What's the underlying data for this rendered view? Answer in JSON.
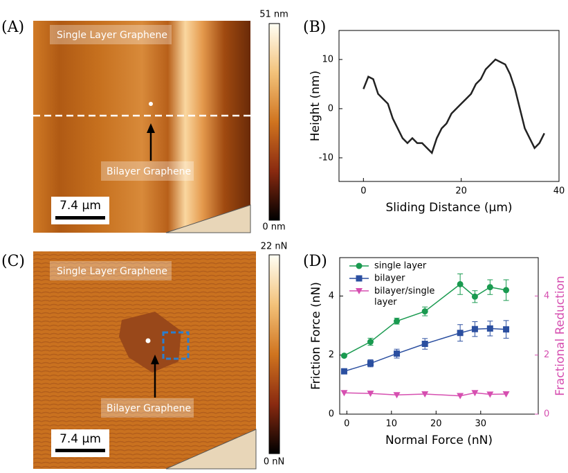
{
  "panels": {
    "a": {
      "label": "(A)",
      "top_annotation": "Single Layer Graphene",
      "bottom_annotation": "Bilayer Graphene",
      "scale_bar": "7.4 µm",
      "colorbar_max": "51 nm",
      "colorbar_min": "0 nm"
    },
    "b": {
      "label": "(B)"
    },
    "c": {
      "label": "(C)",
      "top_annotation": "Single Layer Graphene",
      "bottom_annotation": "Bilayer Graphene",
      "scale_bar": "7.4 µm",
      "colorbar_max": "22 nN",
      "colorbar_min": "0 nN"
    },
    "d": {
      "label": "(D)"
    }
  },
  "chart_data": [
    {
      "type": "line",
      "xlabel": "Sliding Distance (µm)",
      "ylabel": "Height (nm)",
      "x": [
        0,
        1,
        2,
        3,
        4,
        5,
        6,
        7,
        8,
        9,
        10,
        11,
        12,
        13,
        14,
        15,
        16,
        17,
        18,
        19,
        20,
        21,
        22,
        23,
        24,
        25,
        26,
        27,
        28,
        29,
        30,
        31,
        32,
        33,
        34,
        35,
        36,
        37
      ],
      "series": [
        {
          "color": "#222222",
          "values": [
            4,
            6.5,
            6,
            3,
            2,
            1,
            -2,
            -4,
            -6,
            -7,
            -6,
            -7,
            -7,
            -8,
            -9,
            -6,
            -4,
            -3,
            -1,
            0,
            1,
            2,
            3,
            5,
            6,
            8,
            9,
            10,
            9.5,
            9,
            7,
            4,
            0,
            -4,
            -6,
            -8,
            -7,
            -5
          ]
        }
      ],
      "xlim": [
        -5,
        40
      ],
      "ylim": [
        -14.8,
        15.9
      ],
      "xticks": [
        0,
        20,
        40
      ],
      "yticks": [
        -10,
        0,
        10
      ]
    },
    {
      "type": "line",
      "xlabel": "Normal Force (nN)",
      "ylabel": "Friction Force (nN)",
      "y2label": "Fractional Reduction",
      "x": [
        -0.6,
        5.3,
        11.2,
        17.5,
        25.4,
        28.7,
        32.1,
        35.7
      ],
      "series": [
        {
          "name": "single layer",
          "color": "#1a9a50",
          "marker": "circle",
          "values": [
            1.98,
            2.45,
            3.15,
            3.48,
            4.4,
            3.98,
            4.3,
            4.2
          ],
          "errors": [
            0.03,
            0.12,
            0.1,
            0.15,
            0.35,
            0.2,
            0.25,
            0.35
          ]
        },
        {
          "name": "bilayer",
          "color": "#2b4fa0",
          "marker": "square",
          "values": [
            1.45,
            1.72,
            2.05,
            2.38,
            2.75,
            2.88,
            2.9,
            2.87
          ],
          "errors": [
            0.08,
            0.12,
            0.15,
            0.18,
            0.28,
            0.25,
            0.25,
            0.3
          ]
        },
        {
          "name": "bilayer/single layer",
          "color": "#d64fb0",
          "marker": "triangle-down",
          "axis": "y2",
          "values": [
            0.72,
            0.7,
            0.65,
            0.68,
            0.62,
            0.72,
            0.67,
            0.68
          ]
        }
      ],
      "xlim": [
        -1.6,
        42.9
      ],
      "ylim": [
        0,
        5.3
      ],
      "y2lim": [
        0,
        5.3
      ],
      "xticks": [
        0,
        10,
        20,
        30
      ],
      "yticks": [
        0,
        2,
        4
      ],
      "y2ticks": [
        0,
        2,
        4
      ],
      "legend": "upper left"
    }
  ]
}
